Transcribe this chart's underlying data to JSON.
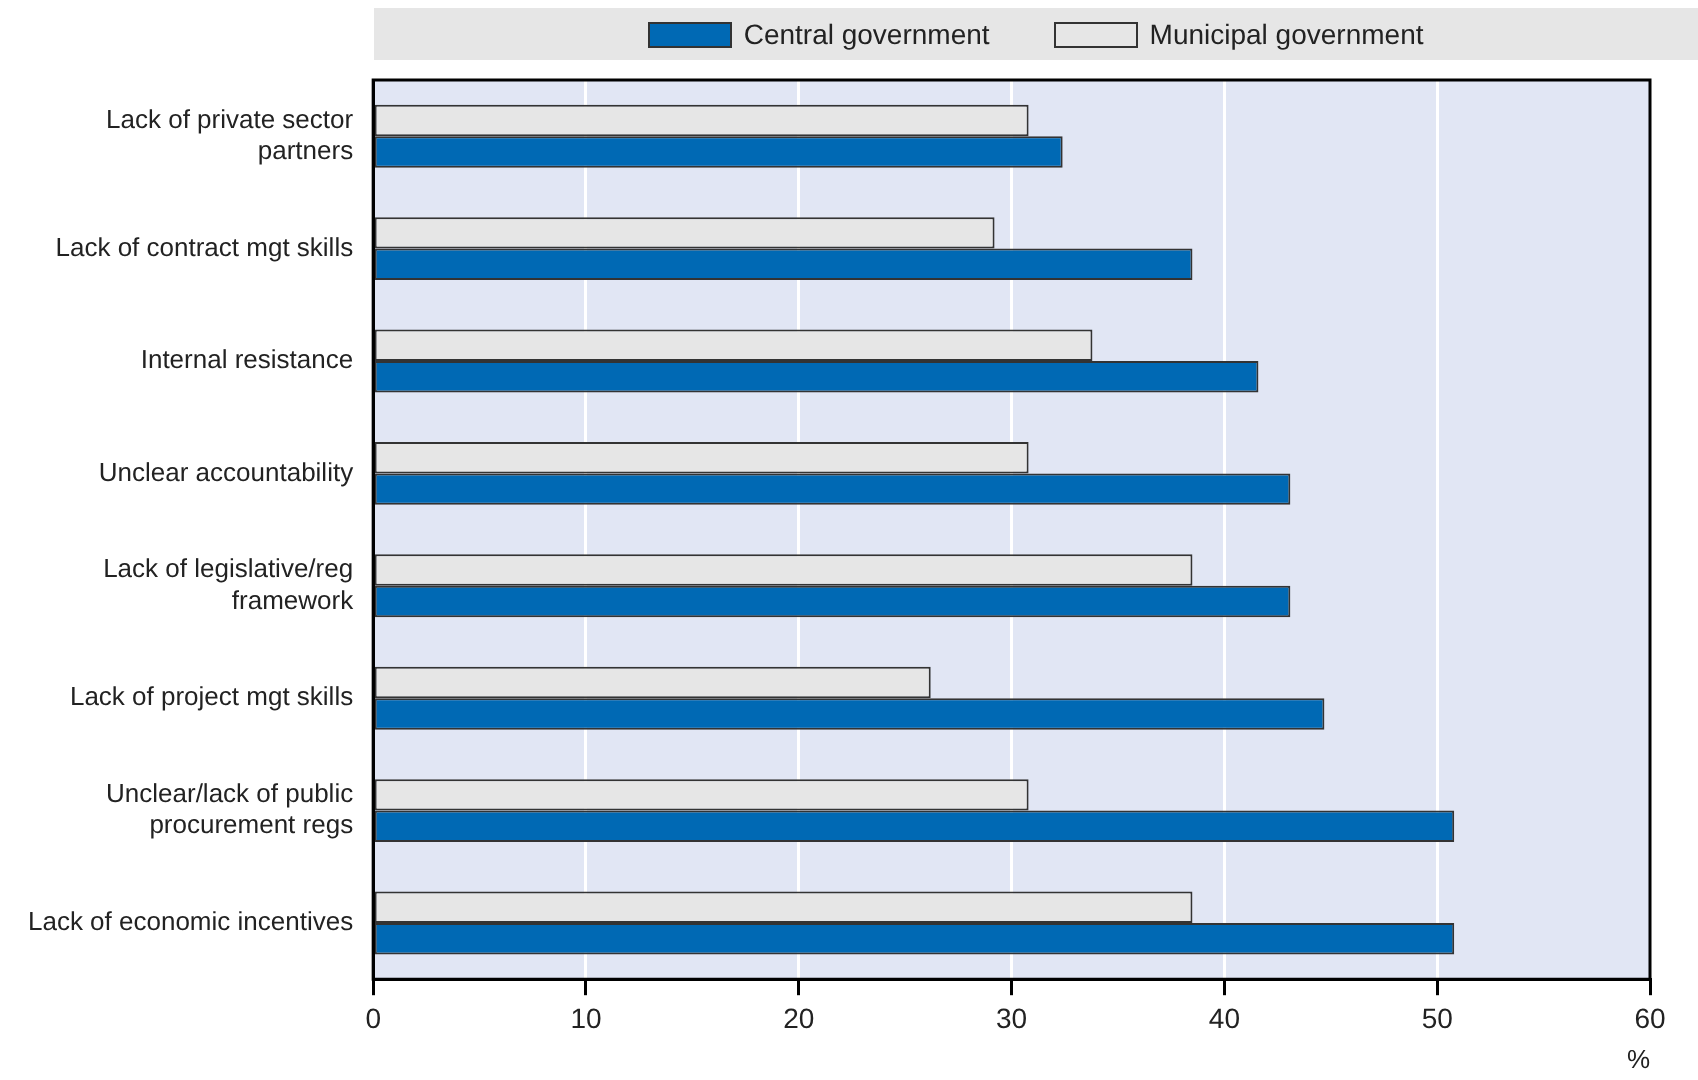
{
  "chart_data": {
    "type": "bar",
    "orientation": "horizontal",
    "xlabel": "%",
    "categories": [
      "Lack of private sector partners",
      "Lack of contract mgt skills",
      "Internal resistance",
      "Unclear accountability",
      "Lack of legislative/reg framework",
      "Lack of project mgt skills",
      "Unclear/lack of public procurement regs",
      "Lack of economic incentives"
    ],
    "series": [
      {
        "name": "Central government",
        "color": "#0069b4",
        "values": [
          32.4,
          38.5,
          41.6,
          43.1,
          43.1,
          44.7,
          50.8,
          50.8
        ]
      },
      {
        "name": "Municipal government",
        "color": "#e6e6e6",
        "values": [
          30.8,
          29.2,
          33.8,
          30.8,
          38.5,
          26.2,
          30.8,
          38.5
        ]
      }
    ],
    "xlim": [
      0,
      60
    ],
    "xticks": [
      0,
      10,
      20,
      30,
      40,
      50,
      60
    ],
    "grid": "x",
    "legend": "top"
  }
}
